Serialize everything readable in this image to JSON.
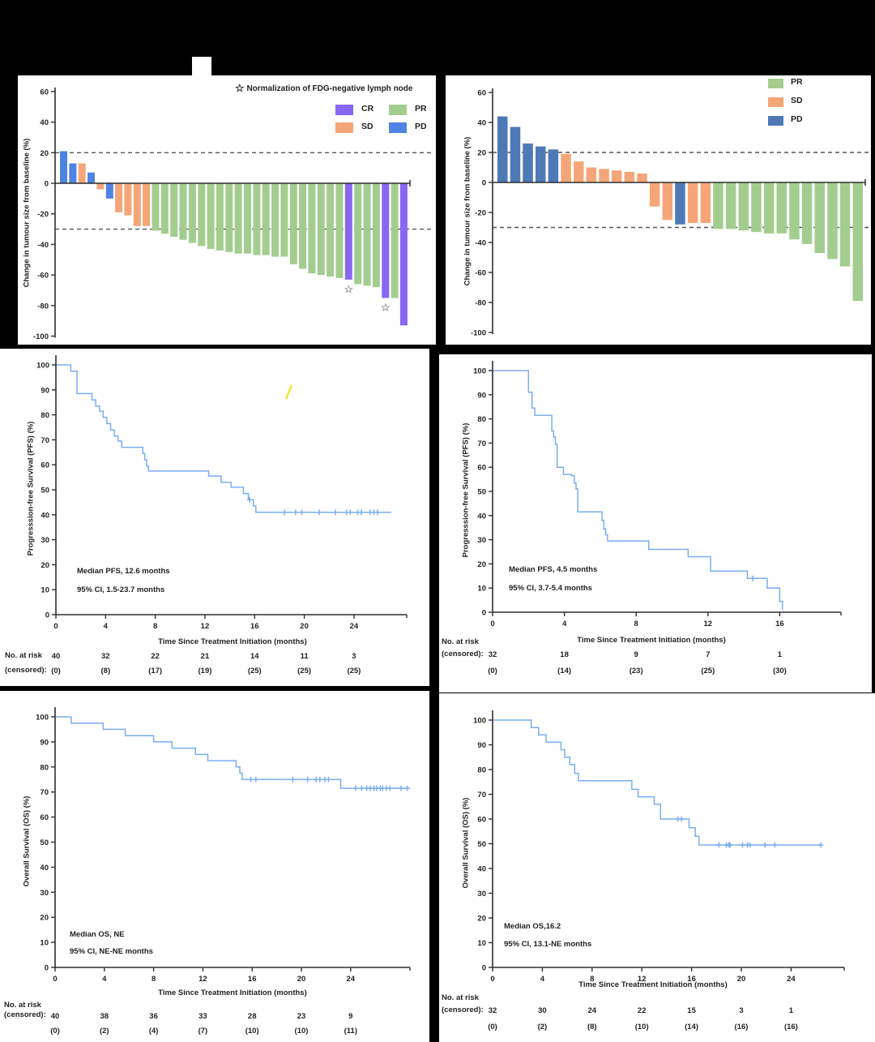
{
  "figure": {
    "background": "#000000",
    "panel_background": "#ffffff"
  },
  "colors": {
    "pr_green": "#a3cd8f",
    "sd_orange": "#f4a678",
    "pd_blue_bright": "#4f83e3",
    "pd_blue_muted": "#4e79b7",
    "cr_purple": "#8767f0",
    "km_line": "#7aaef0",
    "axis": "#2f2f2f",
    "dashed": "#555555",
    "artifact_yellow": "#f2e23c"
  },
  "chart_data": [
    {
      "id": "waterfall-best-response-left",
      "type": "bar",
      "subtype": "waterfall",
      "ylabel": "Change in tumour size from baseline (%)",
      "ylim": [
        -100,
        60
      ],
      "yticks": [
        60,
        40,
        20,
        0,
        -20,
        -40,
        -60,
        -80,
        -100
      ],
      "reference_lines": [
        20,
        -30
      ],
      "legend": {
        "star_glyph": "☆",
        "note": "Normalization of FDG-negative lymph node",
        "items": [
          "CR",
          "PR",
          "SD",
          "PD"
        ]
      },
      "palette": {
        "CR": "#8767f0",
        "PR": "#a3cd8f",
        "SD": "#f4a678",
        "PD": "#4f83e3"
      },
      "series": [
        {
          "name": "patients",
          "values": [
            21,
            13,
            13,
            7,
            -4,
            -10,
            -19,
            -21,
            -28,
            -28,
            -31,
            -33,
            -35,
            -37,
            -39,
            -41,
            -43,
            -44,
            -45,
            -46,
            -46,
            -47,
            -47,
            -48,
            -48,
            -53,
            -56,
            -59,
            -60,
            -61,
            -62,
            -63,
            -66,
            -67,
            -68,
            -75,
            -75,
            -93
          ],
          "category": [
            "PD",
            "PD",
            "SD",
            "PD",
            "SD",
            "PD",
            "SD",
            "SD",
            "SD",
            "SD",
            "PR",
            "PR",
            "PR",
            "PR",
            "PR",
            "PR",
            "PR",
            "PR",
            "PR",
            "PR",
            "PR",
            "PR",
            "PR",
            "PR",
            "PR",
            "PR",
            "PR",
            "PR",
            "PR",
            "PR",
            "PR",
            "CR",
            "PR",
            "PR",
            "PR",
            "CR",
            "PR",
            "CR"
          ],
          "starred_indices": [
            31,
            35
          ]
        }
      ]
    },
    {
      "id": "waterfall-best-response-right",
      "type": "bar",
      "subtype": "waterfall",
      "ylabel": "Change in tumour size from baseline (%)",
      "ylim": [
        -100,
        60
      ],
      "yticks": [
        60,
        40,
        20,
        0,
        -20,
        -40,
        -60,
        -80,
        -100
      ],
      "reference_lines": [
        20,
        -30
      ],
      "legend": {
        "items": [
          "PR",
          "SD",
          "PD"
        ]
      },
      "palette": {
        "PR": "#a3cd8f",
        "SD": "#f4a678",
        "PD": "#4e79b7"
      },
      "series": [
        {
          "name": "patients",
          "values": [
            44,
            37,
            26,
            24,
            22,
            19,
            14,
            10,
            9,
            8,
            7,
            6,
            -16,
            -25,
            -28,
            -27,
            -27,
            -31,
            -31,
            -32,
            -33,
            -34,
            -34,
            -38,
            -41,
            -47,
            -51,
            -56,
            -79
          ],
          "category": [
            "PD",
            "PD",
            "PD",
            "PD",
            "PD",
            "SD",
            "SD",
            "SD",
            "SD",
            "SD",
            "SD",
            "SD",
            "SD",
            "SD",
            "PD",
            "SD",
            "SD",
            "PR",
            "PR",
            "PR",
            "PR",
            "PR",
            "PR",
            "PR",
            "PR",
            "PR",
            "PR",
            "PR",
            "PR"
          ]
        }
      ]
    },
    {
      "id": "pfs-left",
      "type": "line",
      "subtype": "kaplan-meier",
      "ylabel": "Progresssion-free Survival (PFS) (%)",
      "xlabel": "Time Since Treatment Initiation (months)",
      "ylim": [
        0,
        100
      ],
      "xticks": [
        0,
        4,
        8,
        12,
        16,
        20,
        24
      ],
      "annotations": [
        "Median PFS, 12.6 months",
        "95% CI, 1.5-23.7 months"
      ],
      "steps": [
        [
          0,
          100
        ],
        [
          1.2,
          100
        ],
        [
          1.2,
          97.5
        ],
        [
          1.7,
          97.5
        ],
        [
          1.7,
          88.5
        ],
        [
          2.9,
          88.5
        ],
        [
          2.9,
          86
        ],
        [
          3.2,
          86
        ],
        [
          3.2,
          83.5
        ],
        [
          3.5,
          83.5
        ],
        [
          3.5,
          81.5
        ],
        [
          3.8,
          81.5
        ],
        [
          3.8,
          79
        ],
        [
          4.1,
          79
        ],
        [
          4.1,
          76.5
        ],
        [
          4.4,
          76.5
        ],
        [
          4.4,
          74
        ],
        [
          4.7,
          74
        ],
        [
          4.7,
          71.5
        ],
        [
          5.0,
          71.5
        ],
        [
          5.0,
          69.5
        ],
        [
          5.3,
          69.5
        ],
        [
          5.3,
          67
        ],
        [
          7.0,
          67
        ],
        [
          7.0,
          64.5
        ],
        [
          7.15,
          64.5
        ],
        [
          7.15,
          62
        ],
        [
          7.3,
          62
        ],
        [
          7.3,
          59.5
        ],
        [
          7.45,
          59.5
        ],
        [
          7.45,
          57.5
        ],
        [
          12.3,
          57.5
        ],
        [
          12.3,
          55.5
        ],
        [
          13.3,
          55.5
        ],
        [
          13.3,
          53
        ],
        [
          14.1,
          53
        ],
        [
          14.1,
          51
        ],
        [
          15.1,
          51
        ],
        [
          15.1,
          48.5
        ],
        [
          15.5,
          48.5
        ],
        [
          15.5,
          46
        ],
        [
          15.9,
          46
        ],
        [
          15.9,
          43.5
        ],
        [
          16.1,
          43.5
        ],
        [
          16.1,
          41
        ],
        [
          27.0,
          41
        ]
      ],
      "censor_marks": [
        [
          15.6,
          46
        ],
        [
          18.4,
          41
        ],
        [
          19.3,
          41
        ],
        [
          19.8,
          41
        ],
        [
          21.2,
          41
        ],
        [
          22.5,
          41
        ],
        [
          23.4,
          41
        ],
        [
          23.7,
          41
        ],
        [
          24.3,
          41
        ],
        [
          24.6,
          41
        ],
        [
          25.3,
          41
        ],
        [
          25.6,
          41
        ],
        [
          25.9,
          41
        ]
      ],
      "at_risk": {
        "row_label_1": "No. at risk",
        "row_label_2": "(censored):",
        "times": [
          0,
          4,
          8,
          12,
          16,
          20,
          24
        ],
        "n": [
          "40",
          "32",
          "22",
          "21",
          "14",
          "11",
          "3"
        ],
        "censored": [
          "(0)",
          "(8)",
          "(17)",
          "(19)",
          "(25)",
          "(25)",
          "(25)"
        ]
      }
    },
    {
      "id": "pfs-right",
      "type": "line",
      "subtype": "kaplan-meier",
      "ylabel": "Progresssion-free Survival (PFS) (%)",
      "xlabel": "Time Since Treatment Initiation (months)",
      "ylim": [
        0,
        100
      ],
      "xticks": [
        0,
        4,
        8,
        12,
        16
      ],
      "annotations": [
        "Median PFS, 4.5 months",
        "95% CI, 3.7-5.4 months"
      ],
      "steps": [
        [
          0,
          100
        ],
        [
          2.0,
          100
        ],
        [
          2.0,
          91
        ],
        [
          2.2,
          91
        ],
        [
          2.2,
          84.5
        ],
        [
          2.35,
          84.5
        ],
        [
          2.35,
          81.5
        ],
        [
          3.3,
          81.5
        ],
        [
          3.3,
          75
        ],
        [
          3.4,
          75
        ],
        [
          3.4,
          72.5
        ],
        [
          3.5,
          72.5
        ],
        [
          3.5,
          69.5
        ],
        [
          3.6,
          69.5
        ],
        [
          3.6,
          60
        ],
        [
          3.95,
          60
        ],
        [
          3.95,
          57
        ],
        [
          4.4,
          57
        ],
        [
          4.4,
          56.5
        ],
        [
          4.55,
          56.5
        ],
        [
          4.55,
          53.5
        ],
        [
          4.65,
          53.5
        ],
        [
          4.65,
          51
        ],
        [
          4.75,
          51
        ],
        [
          4.75,
          41.5
        ],
        [
          6.1,
          41.5
        ],
        [
          6.1,
          38
        ],
        [
          6.2,
          38
        ],
        [
          6.2,
          34.5
        ],
        [
          6.3,
          34.5
        ],
        [
          6.3,
          32
        ],
        [
          6.4,
          32
        ],
        [
          6.4,
          29.5
        ],
        [
          8.7,
          29.5
        ],
        [
          8.7,
          26
        ],
        [
          10.9,
          26
        ],
        [
          10.9,
          23
        ],
        [
          12.15,
          23
        ],
        [
          12.15,
          17
        ],
        [
          14.2,
          17
        ],
        [
          14.2,
          14
        ],
        [
          15.3,
          14
        ],
        [
          15.3,
          10
        ],
        [
          16.0,
          10
        ],
        [
          16.0,
          4.5
        ],
        [
          16.15,
          4.5
        ],
        [
          16.15,
          1
        ]
      ],
      "censor_marks": [
        [
          14.5,
          14
        ]
      ],
      "at_risk": {
        "row_label_1": "No. at risk",
        "row_label_2": "(censored):",
        "times": [
          0,
          4,
          8,
          12,
          16
        ],
        "n": [
          "32",
          "18",
          "9",
          "7",
          "1"
        ],
        "censored": [
          "(0)",
          "(14)",
          "(23)",
          "(25)",
          "(30)"
        ]
      }
    },
    {
      "id": "os-left",
      "type": "line",
      "subtype": "kaplan-meier",
      "ylabel": "Overall Survival (OS) (%)",
      "xlabel": "Time Since Treatment Initiation (months)",
      "ylim": [
        0,
        100
      ],
      "xticks": [
        0,
        4,
        8,
        12,
        16,
        20,
        24
      ],
      "annotations": [
        "Median OS, NE",
        "95% CI, NE-NE months"
      ],
      "steps": [
        [
          0,
          100
        ],
        [
          1.3,
          100
        ],
        [
          1.3,
          97.5
        ],
        [
          3.9,
          97.5
        ],
        [
          3.9,
          95
        ],
        [
          5.7,
          95
        ],
        [
          5.7,
          92.5
        ],
        [
          8.0,
          92.5
        ],
        [
          8.0,
          90
        ],
        [
          9.5,
          90
        ],
        [
          9.5,
          87.5
        ],
        [
          11.4,
          87.5
        ],
        [
          11.4,
          85
        ],
        [
          12.4,
          85
        ],
        [
          12.4,
          82.5
        ],
        [
          14.7,
          82.5
        ],
        [
          14.7,
          80
        ],
        [
          15.0,
          80
        ],
        [
          15.0,
          77.5
        ],
        [
          15.2,
          77.5
        ],
        [
          15.2,
          75
        ],
        [
          23.2,
          75
        ],
        [
          23.2,
          71.5
        ],
        [
          28.8,
          71.5
        ]
      ],
      "censor_marks": [
        [
          15.9,
          75
        ],
        [
          16.3,
          75
        ],
        [
          19.3,
          75
        ],
        [
          20.5,
          75
        ],
        [
          21.2,
          75
        ],
        [
          21.5,
          75
        ],
        [
          21.9,
          75
        ],
        [
          22.2,
          75
        ],
        [
          24.4,
          71.5
        ],
        [
          24.9,
          71.5
        ],
        [
          25.3,
          71.5
        ],
        [
          25.6,
          71.5
        ],
        [
          25.9,
          71.5
        ],
        [
          26.1,
          71.5
        ],
        [
          26.4,
          71.5
        ],
        [
          26.6,
          71.5
        ],
        [
          26.9,
          71.5
        ],
        [
          27.2,
          71.5
        ],
        [
          28.1,
          71.5
        ],
        [
          28.6,
          71.5
        ]
      ],
      "at_risk": {
        "row_label_1": "No. at risk",
        "row_label_2": "(censored):",
        "times": [
          0,
          4,
          8,
          12,
          16,
          20,
          24
        ],
        "n": [
          "40",
          "38",
          "36",
          "33",
          "28",
          "23",
          "9"
        ],
        "censored": [
          "(0)",
          "(2)",
          "(4)",
          "(7)",
          "(10)",
          "(10)",
          "(11)"
        ]
      }
    },
    {
      "id": "os-right",
      "type": "line",
      "subtype": "kaplan-meier",
      "ylabel": "Overall Survival (OS) (%)",
      "xlabel": "Time Since Treatment Initiation (months)",
      "ylim": [
        0,
        100
      ],
      "xticks": [
        0,
        4,
        8,
        12,
        16,
        20,
        24
      ],
      "annotations": [
        "Median OS,16.2",
        "95% CI, 13.1-NE months"
      ],
      "steps": [
        [
          0,
          100
        ],
        [
          3.1,
          100
        ],
        [
          3.1,
          97
        ],
        [
          3.7,
          97
        ],
        [
          3.7,
          94
        ],
        [
          4.3,
          94
        ],
        [
          4.3,
          91
        ],
        [
          5.5,
          91
        ],
        [
          5.5,
          88
        ],
        [
          5.8,
          88
        ],
        [
          5.8,
          85
        ],
        [
          6.2,
          85
        ],
        [
          6.2,
          82
        ],
        [
          6.6,
          82
        ],
        [
          6.6,
          78.5
        ],
        [
          6.9,
          78.5
        ],
        [
          6.9,
          75.5
        ],
        [
          11.2,
          75.5
        ],
        [
          11.2,
          72
        ],
        [
          11.7,
          72
        ],
        [
          11.7,
          69
        ],
        [
          13.0,
          69
        ],
        [
          13.0,
          66
        ],
        [
          13.5,
          66
        ],
        [
          13.5,
          60
        ],
        [
          15.8,
          60
        ],
        [
          15.8,
          56.5
        ],
        [
          16.3,
          56.5
        ],
        [
          16.3,
          53
        ],
        [
          16.6,
          53
        ],
        [
          16.6,
          49.5
        ],
        [
          26.4,
          49.5
        ]
      ],
      "censor_marks": [
        [
          14.9,
          60
        ],
        [
          15.2,
          60
        ],
        [
          18.2,
          49.5
        ],
        [
          18.8,
          49.5
        ],
        [
          19.0,
          49.5
        ],
        [
          19.1,
          49.5
        ],
        [
          20.1,
          49.5
        ],
        [
          20.5,
          49.5
        ],
        [
          20.7,
          49.5
        ],
        [
          21.9,
          49.5
        ],
        [
          22.7,
          49.5
        ],
        [
          26.4,
          49.5
        ]
      ],
      "at_risk": {
        "row_label_1": "No. at risk",
        "row_label_2": "(censored):",
        "times": [
          0,
          4,
          8,
          12,
          16,
          20,
          24
        ],
        "n": [
          "32",
          "30",
          "24",
          "22",
          "15",
          "3",
          "1"
        ],
        "censored": [
          "(0)",
          "(2)",
          "(8)",
          "(10)",
          "(14)",
          "(16)",
          "(16)"
        ]
      }
    }
  ]
}
